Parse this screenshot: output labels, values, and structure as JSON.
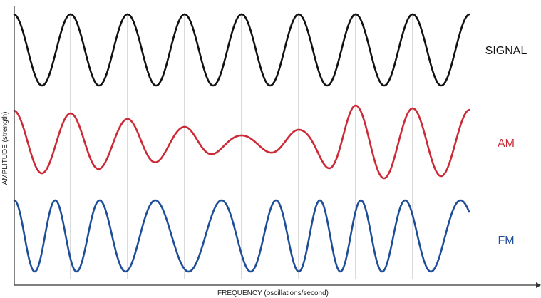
{
  "axes": {
    "x_title": "FREQUENCY (oscillations/second)",
    "y_title": "AMPLITUDE (strength)"
  },
  "waves": [
    {
      "id": "signal",
      "label": "SIGNAL",
      "color": "#111111"
    },
    {
      "id": "am",
      "label": "AM",
      "color": "#cc2a36"
    },
    {
      "id": "fm",
      "label": "FM",
      "color": "#1f4e99"
    }
  ],
  "colors": {
    "axis": "#333333",
    "gridline": "#b4b4b4"
  }
}
